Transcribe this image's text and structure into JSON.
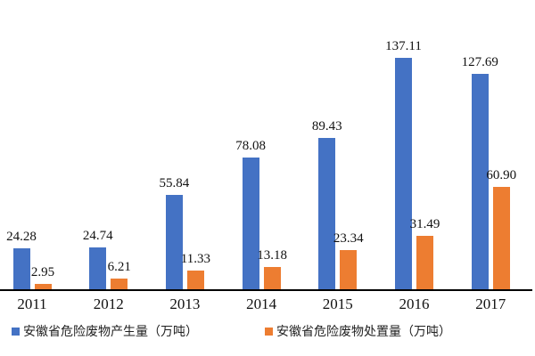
{
  "chart_data": {
    "type": "bar",
    "title": "",
    "xlabel": "",
    "ylabel": "",
    "grid": false,
    "legend_position": "bottom",
    "ylim": [
      0,
      150
    ],
    "categories": [
      "2011",
      "2012",
      "2013",
      "2014",
      "2015",
      "2016",
      "2017"
    ],
    "series": [
      {
        "name": "安徽省危险废物产生量（万吨）",
        "color": "#4472C4",
        "values": [
          24.28,
          24.74,
          55.84,
          78.08,
          89.43,
          137.11,
          127.69
        ],
        "labels": [
          "24.28",
          "24.74",
          "55.84",
          "78.08",
          "89.43",
          "137.11",
          "127.69"
        ]
      },
      {
        "name": "安徽省危险废物处置量（万吨）",
        "color": "#ED7D31",
        "values": [
          2.95,
          6.21,
          11.33,
          13.18,
          23.34,
          31.49,
          60.9
        ],
        "labels": [
          "2.95",
          "6.21",
          "11.33",
          "13.18",
          "23.34",
          "31.49",
          "60.90"
        ]
      }
    ],
    "axis_color": "#000000",
    "label_color": "#111111"
  }
}
